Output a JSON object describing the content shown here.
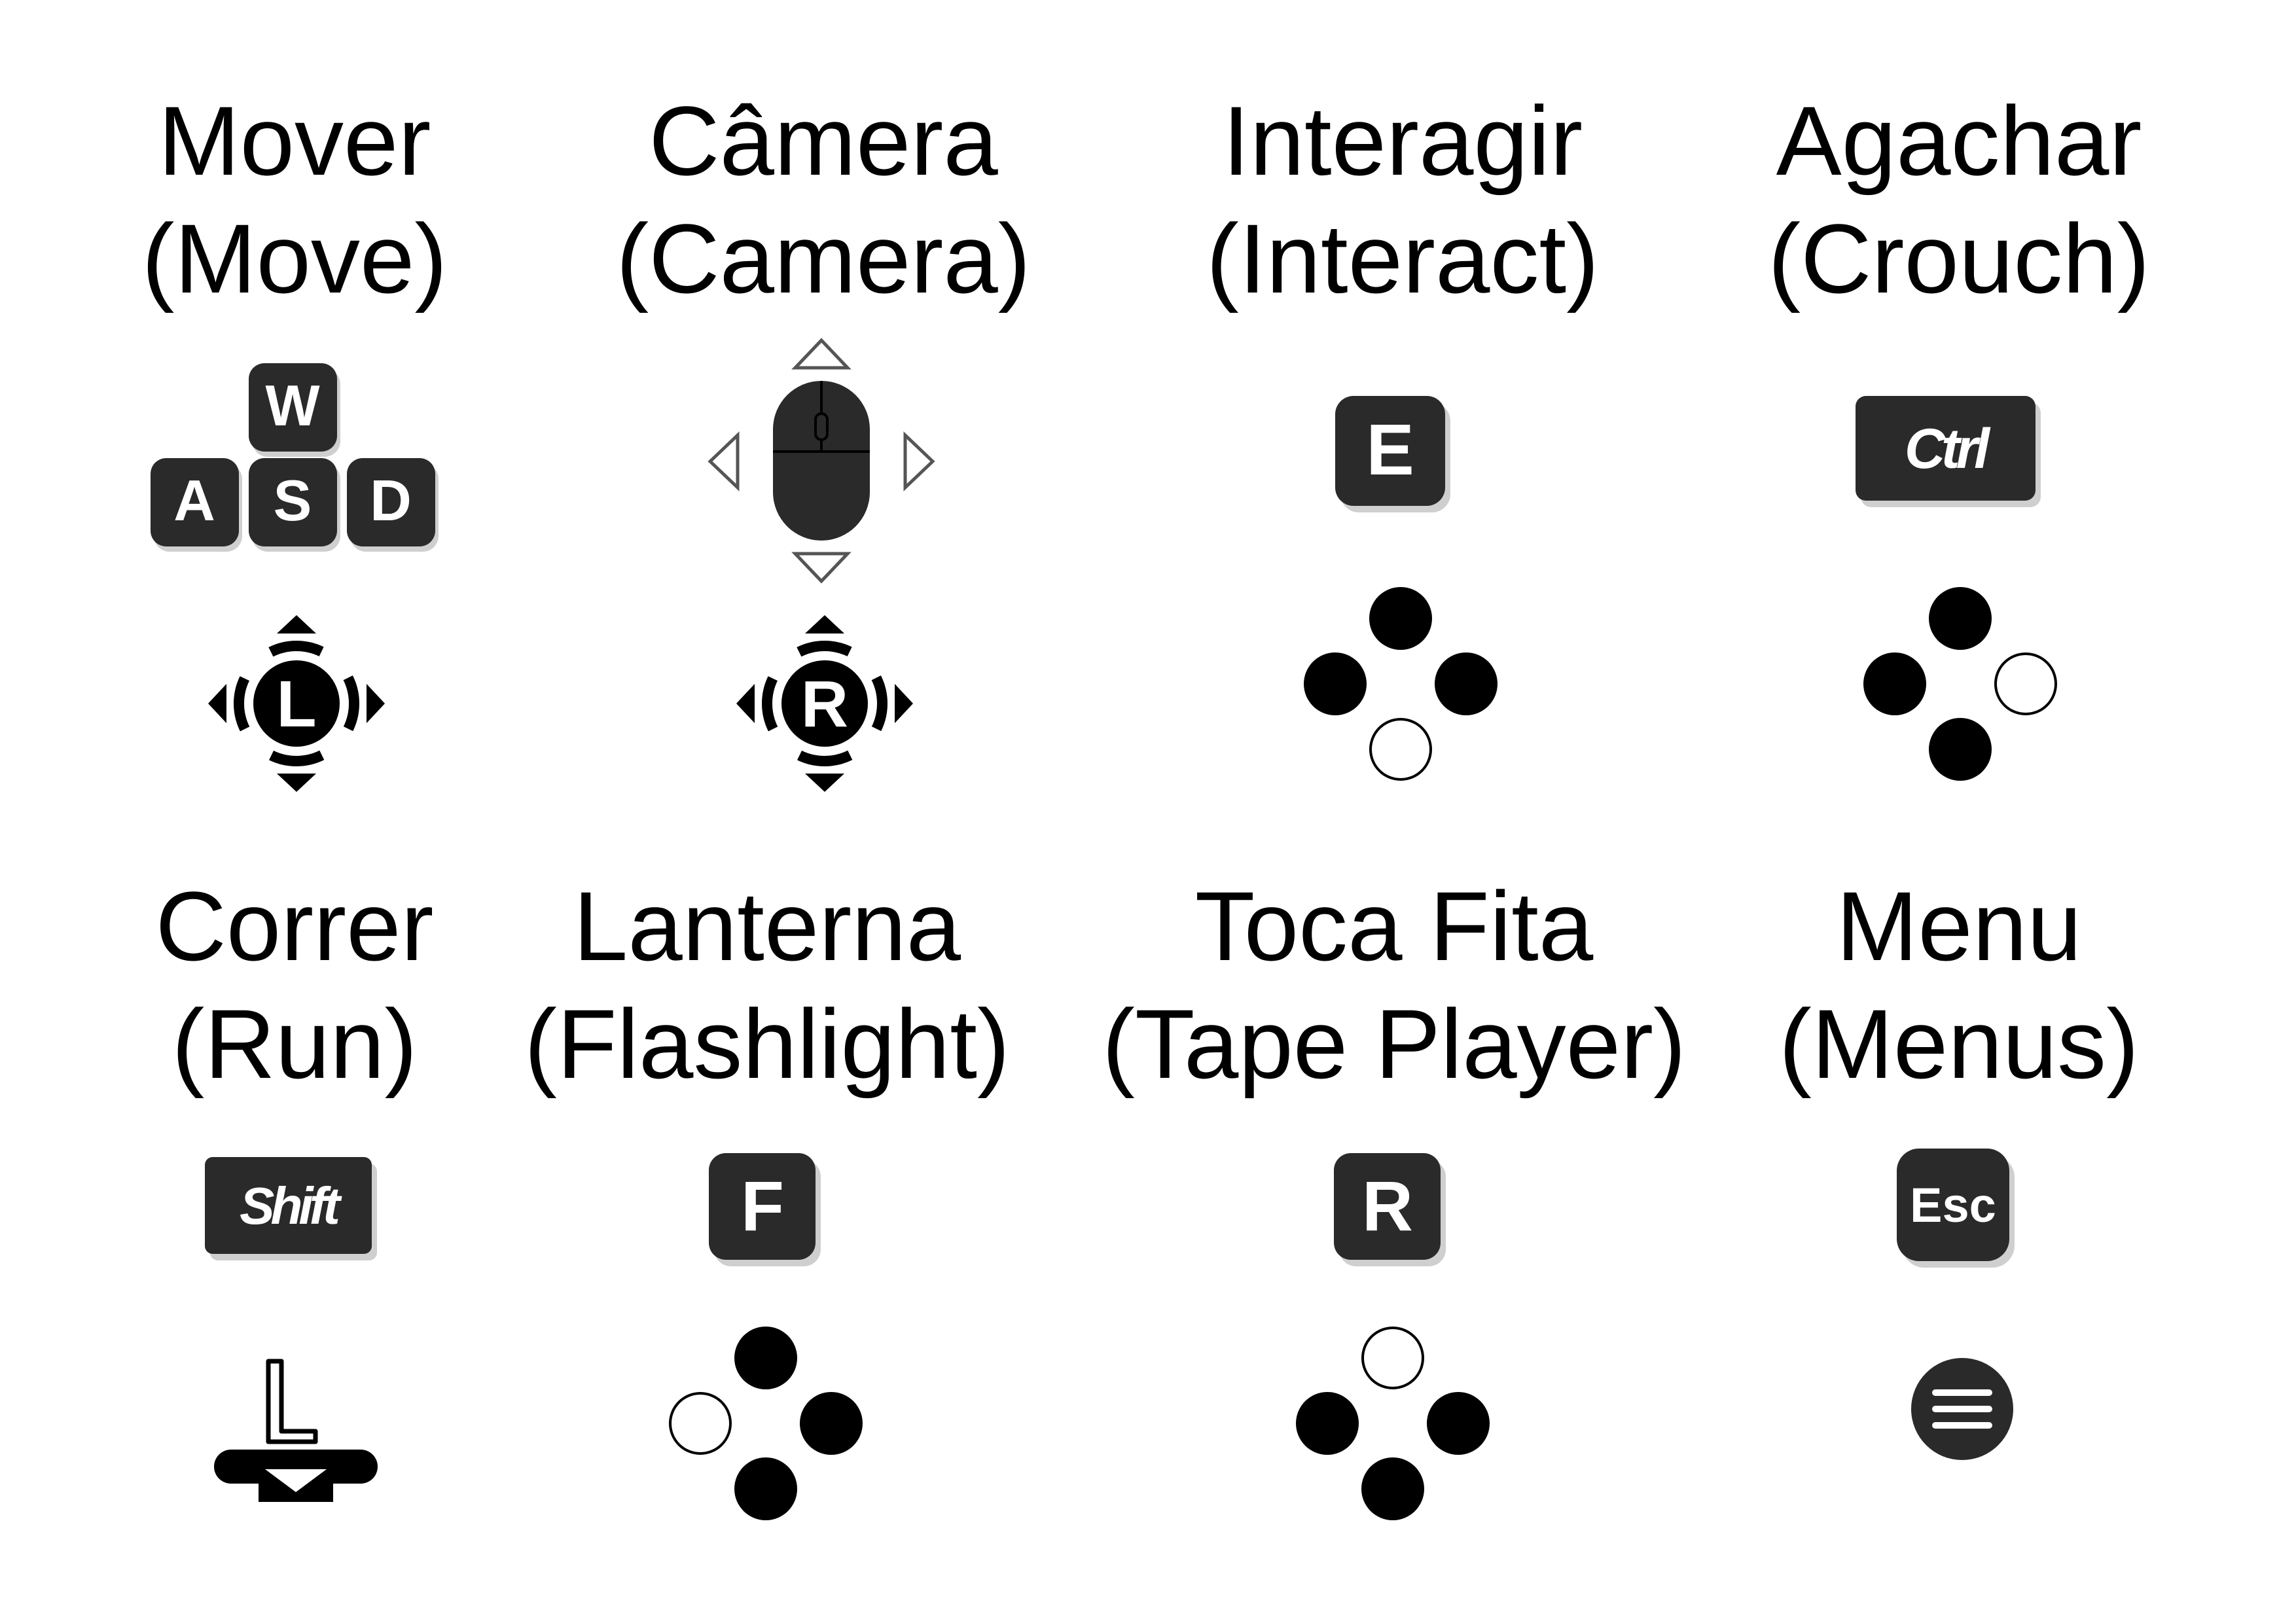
{
  "actions": [
    {
      "title_pt": "Mover",
      "title_en": "(Move)",
      "keyboard": [
        "W",
        "A",
        "S",
        "D"
      ],
      "keyboard_icon": "wasd-keys-icon",
      "gamepad_icon": "left-stick-icon",
      "gamepad_label": "L"
    },
    {
      "title_pt": "Câmera",
      "title_en": "(Camera)",
      "keyboard_icon": "mouse-move-icon",
      "gamepad_icon": "right-stick-icon",
      "gamepad_label": "R"
    },
    {
      "title_pt": "Interagir",
      "title_en": "(Interact)",
      "keyboard": "E",
      "keyboard_icon": "e-key-icon",
      "gamepad_icon": "face-button-bottom-icon"
    },
    {
      "title_pt": "Agachar",
      "title_en": "(Crouch)",
      "keyboard": "Ctrl",
      "keyboard_icon": "ctrl-key-icon",
      "gamepad_icon": "face-button-right-icon"
    },
    {
      "title_pt": "Correr",
      "title_en": "(Run)",
      "keyboard": "Shift",
      "keyboard_icon": "shift-key-icon",
      "gamepad_icon": "left-stick-press-icon",
      "gamepad_label": "L"
    },
    {
      "title_pt": "Lanterna",
      "title_en": "(Flashlight)",
      "keyboard": "F",
      "keyboard_icon": "f-key-icon",
      "gamepad_icon": "face-button-left-icon"
    },
    {
      "title_pt": "Toca Fita",
      "title_en": "(Tape Player)",
      "keyboard": "R",
      "keyboard_icon": "r-key-icon",
      "gamepad_icon": "face-button-top-icon"
    },
    {
      "title_pt": "Menu",
      "title_en": "(Menus)",
      "keyboard": "Esc",
      "keyboard_icon": "esc-key-icon",
      "gamepad_icon": "menu-button-icon"
    }
  ],
  "colors": {
    "key": "#2a2a2a",
    "shadow": "#cfcfcf",
    "ink": "#000000",
    "outline": "#555555"
  }
}
